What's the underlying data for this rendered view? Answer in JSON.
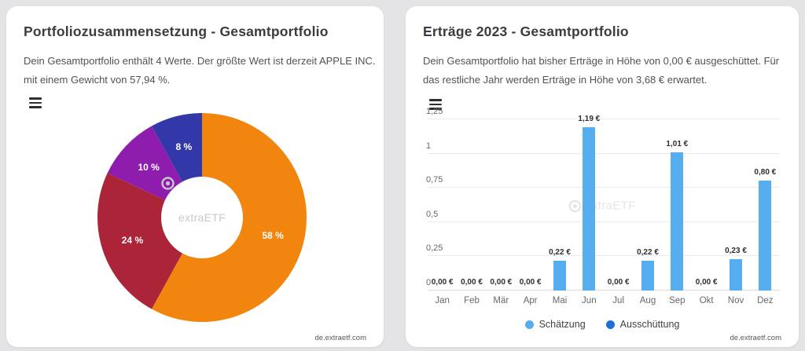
{
  "left_card": {
    "title": "Portfoliozusammensetzung - Gesamtportfolio",
    "description_line1": "Dein Gesamtportfolio enthält 4 Werte. Der größte Wert ist derzeit APPLE INC.",
    "description_line2": "mit einem Gewicht von 57,94 %.",
    "watermark": "extraETF",
    "footer": "de.extraetf.com"
  },
  "right_card": {
    "title": "Erträge 2023 - Gesamtportfolio",
    "description_line1": "Dein Gesamtportfolio hat bisher Erträge in Höhe von 0,00 € ausgeschüttet. Für",
    "description_line2": "das restliche Jahr werden Erträge in Höhe von 3,68 € erwartet.",
    "watermark": "extraETF",
    "footer": "de.extraetf.com"
  },
  "chart_data": [
    {
      "type": "pie",
      "subtype": "donut",
      "title": "Portfoliozusammensetzung - Gesamtportfolio",
      "segments": [
        {
          "label": "58 %",
          "value": 58,
          "color": "#F2850D"
        },
        {
          "label": "24 %",
          "value": 24,
          "color": "#AB2437"
        },
        {
          "label": "10 %",
          "value": 10,
          "color": "#8E1DAD"
        },
        {
          "label": "8 %",
          "value": 8,
          "color": "#3338A9"
        }
      ],
      "start_angle_deg": 0,
      "inner_radius_ratio": 0.39,
      "label_radius_ratio": 0.7
    },
    {
      "type": "bar",
      "title": "Erträge 2023 - Gesamtportfolio",
      "categories": [
        "Jan",
        "Feb",
        "Mär",
        "Apr",
        "Mai",
        "Jun",
        "Jul",
        "Aug",
        "Sep",
        "Okt",
        "Nov",
        "Dez"
      ],
      "values": [
        0,
        0,
        0,
        0,
        0.22,
        1.19,
        0,
        0.22,
        1.01,
        0,
        0.23,
        0.8
      ],
      "value_labels": [
        "0,00 €",
        "0,00 €",
        "0,00 €",
        "0,00 €",
        "0,22 €",
        "1,19 €",
        "0,00 €",
        "0,22 €",
        "1,01 €",
        "0,00 €",
        "0,23 €",
        "0,80 €"
      ],
      "y_ticks": [
        "0",
        "0,25",
        "0,5",
        "0,75",
        "1",
        "1,25"
      ],
      "ylim": [
        0,
        1.25
      ],
      "grid": true,
      "bar_color": "#57aeef",
      "legend_position": "bottom",
      "legend": [
        {
          "label": "Schätzung",
          "color": "#57aeef"
        },
        {
          "label": "Ausschüttung",
          "color": "#1d6fd2"
        }
      ]
    }
  ]
}
